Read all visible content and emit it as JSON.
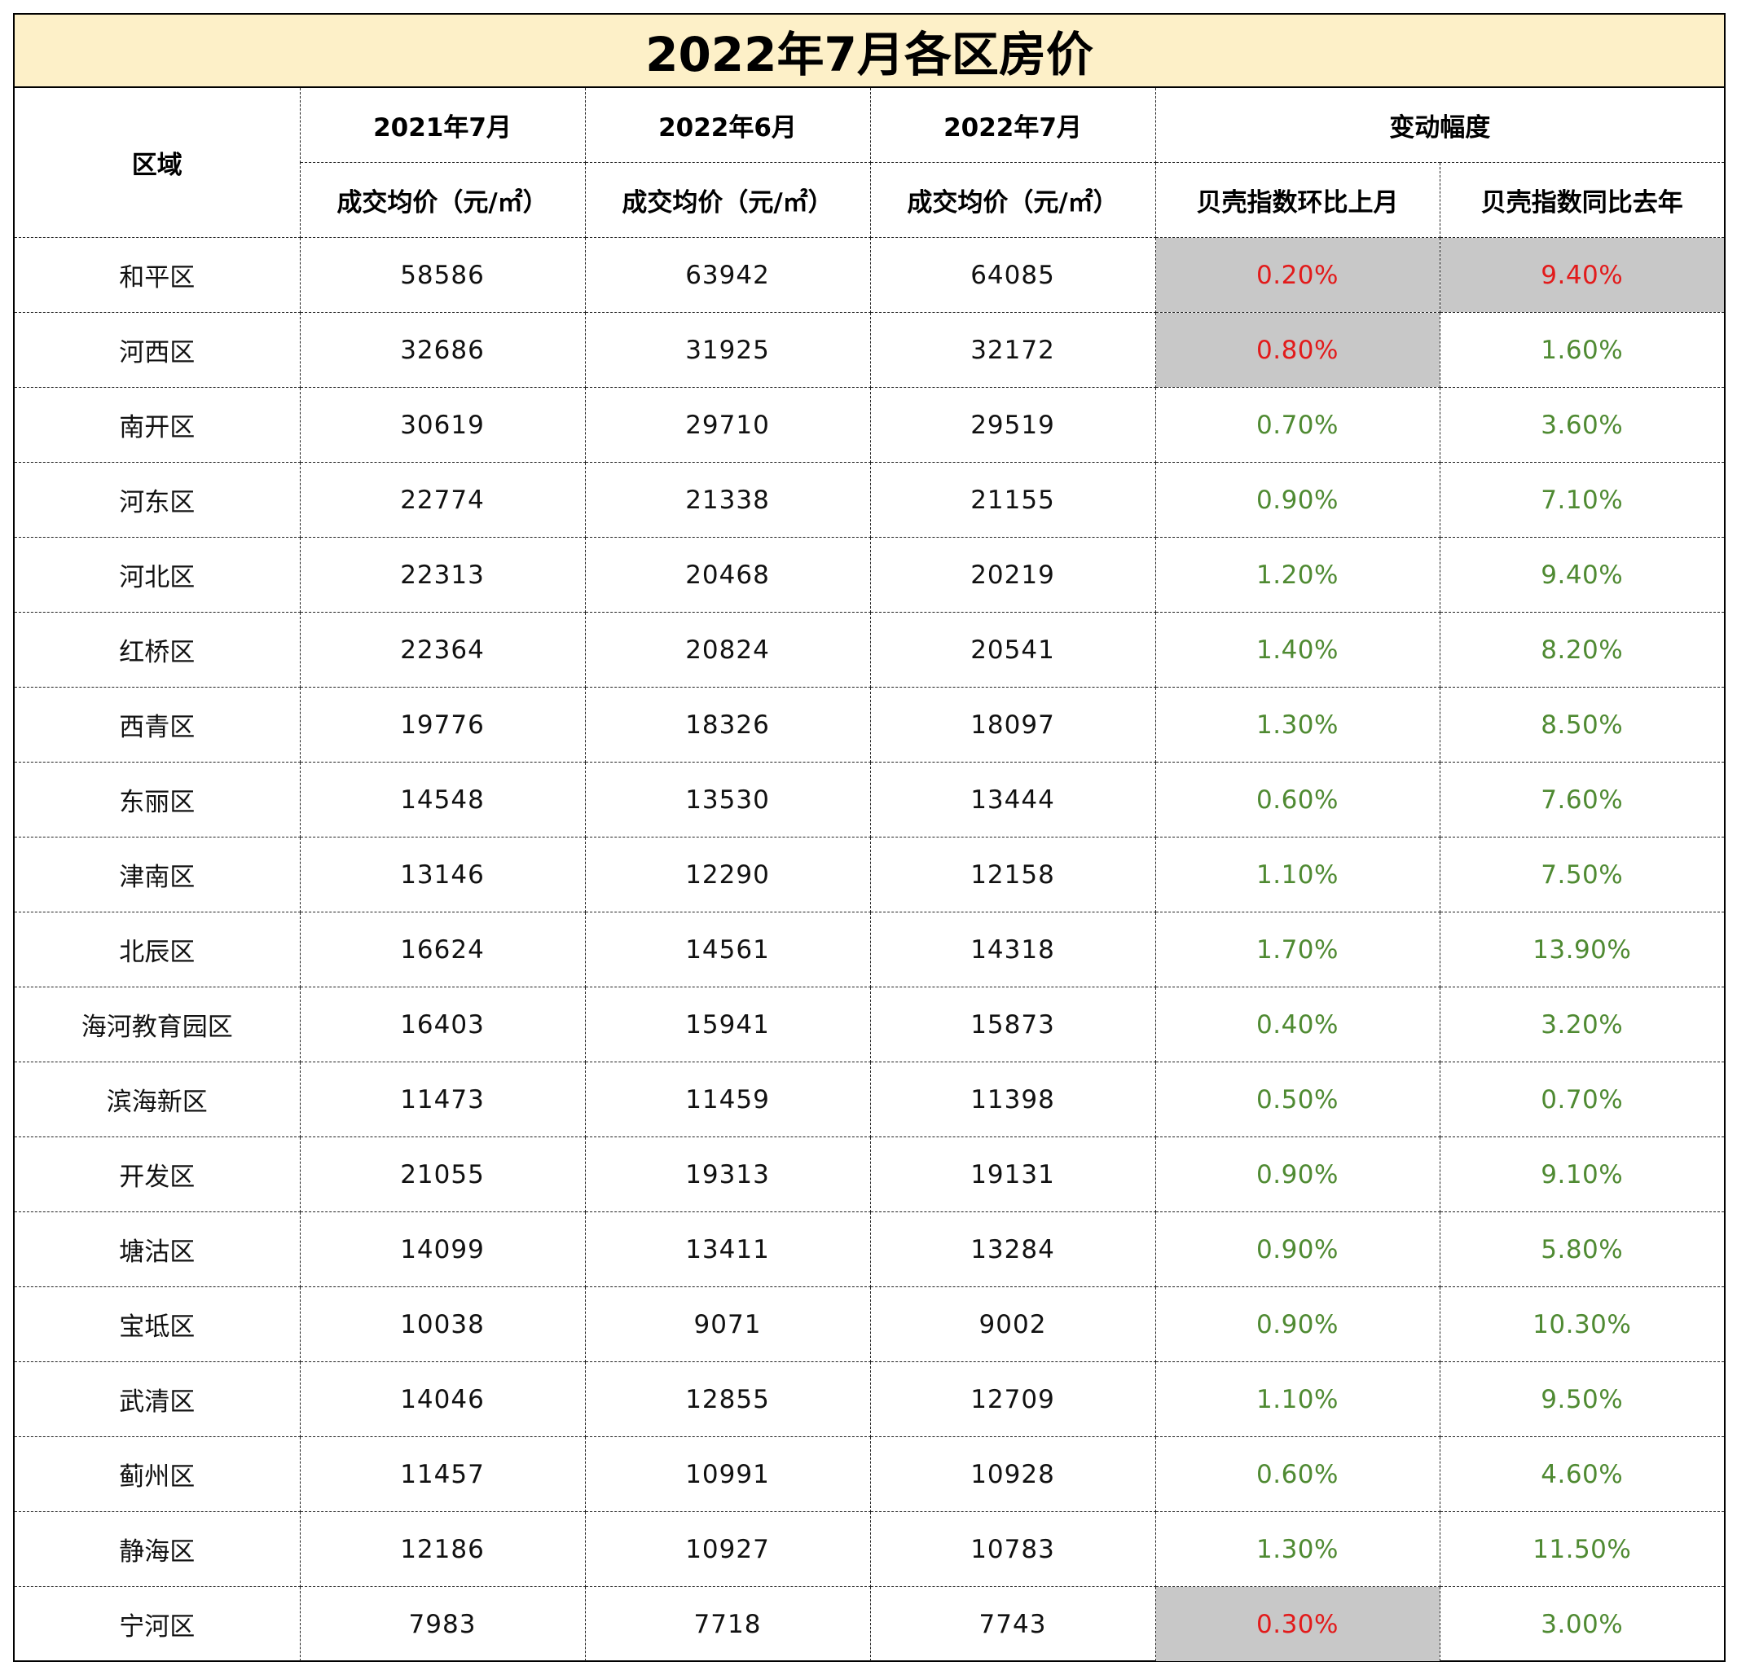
{
  "title": "2022年7月各区房价",
  "header": {
    "region": "区域",
    "p2021_07": "2021年7月",
    "p2022_06": "2022年6月",
    "p2022_07": "2022年7月",
    "change": "变动幅度",
    "avg_price_1": "成交均价（元/㎡）",
    "avg_price_2": "成交均价（元/㎡）",
    "avg_price_3": "成交均价（元/㎡）",
    "mom": "贝壳指数环比上月",
    "yoy": "贝壳指数同比去年"
  },
  "rows": [
    {
      "region": "和平区",
      "p2021_07": "58586",
      "p2022_06": "63942",
      "p2022_07": "64085",
      "mom": "0.20%",
      "yoy": "9.40%",
      "mom_color": "#e21b1b",
      "yoy_color": "#e21b1b",
      "mom_shaded": true,
      "yoy_shaded": true
    },
    {
      "region": "河西区",
      "p2021_07": "32686",
      "p2022_06": "31925",
      "p2022_07": "32172",
      "mom": "0.80%",
      "yoy": "1.60%",
      "mom_color": "#e21b1b",
      "yoy_color": "#4f8a32",
      "mom_shaded": true,
      "yoy_shaded": false
    },
    {
      "region": "南开区",
      "p2021_07": "30619",
      "p2022_06": "29710",
      "p2022_07": "29519",
      "mom": "0.70%",
      "yoy": "3.60%",
      "mom_color": "#4f8a32",
      "yoy_color": "#4f8a32",
      "mom_shaded": false,
      "yoy_shaded": false
    },
    {
      "region": "河东区",
      "p2021_07": "22774",
      "p2022_06": "21338",
      "p2022_07": "21155",
      "mom": "0.90%",
      "yoy": "7.10%",
      "mom_color": "#4f8a32",
      "yoy_color": "#4f8a32",
      "mom_shaded": false,
      "yoy_shaded": false
    },
    {
      "region": "河北区",
      "p2021_07": "22313",
      "p2022_06": "20468",
      "p2022_07": "20219",
      "mom": "1.20%",
      "yoy": "9.40%",
      "mom_color": "#4f8a32",
      "yoy_color": "#4f8a32",
      "mom_shaded": false,
      "yoy_shaded": false
    },
    {
      "region": "红桥区",
      "p2021_07": "22364",
      "p2022_06": "20824",
      "p2022_07": "20541",
      "mom": "1.40%",
      "yoy": "8.20%",
      "mom_color": "#4f8a32",
      "yoy_color": "#4f8a32",
      "mom_shaded": false,
      "yoy_shaded": false
    },
    {
      "region": "西青区",
      "p2021_07": "19776",
      "p2022_06": "18326",
      "p2022_07": "18097",
      "mom": "1.30%",
      "yoy": "8.50%",
      "mom_color": "#4f8a32",
      "yoy_color": "#4f8a32",
      "mom_shaded": false,
      "yoy_shaded": false
    },
    {
      "region": "东丽区",
      "p2021_07": "14548",
      "p2022_06": "13530",
      "p2022_07": "13444",
      "mom": "0.60%",
      "yoy": "7.60%",
      "mom_color": "#4f8a32",
      "yoy_color": "#4f8a32",
      "mom_shaded": false,
      "yoy_shaded": false
    },
    {
      "region": "津南区",
      "p2021_07": "13146",
      "p2022_06": "12290",
      "p2022_07": "12158",
      "mom": "1.10%",
      "yoy": "7.50%",
      "mom_color": "#4f8a32",
      "yoy_color": "#4f8a32",
      "mom_shaded": false,
      "yoy_shaded": false
    },
    {
      "region": "北辰区",
      "p2021_07": "16624",
      "p2022_06": "14561",
      "p2022_07": "14318",
      "mom": "1.70%",
      "yoy": "13.90%",
      "mom_color": "#4f8a32",
      "yoy_color": "#4f8a32",
      "mom_shaded": false,
      "yoy_shaded": false
    },
    {
      "region": "海河教育园区",
      "p2021_07": "16403",
      "p2022_06": "15941",
      "p2022_07": "15873",
      "mom": "0.40%",
      "yoy": "3.20%",
      "mom_color": "#4f8a32",
      "yoy_color": "#4f8a32",
      "mom_shaded": false,
      "yoy_shaded": false
    },
    {
      "region": "滨海新区",
      "p2021_07": "11473",
      "p2022_06": "11459",
      "p2022_07": "11398",
      "mom": "0.50%",
      "yoy": "0.70%",
      "mom_color": "#4f8a32",
      "yoy_color": "#4f8a32",
      "mom_shaded": false,
      "yoy_shaded": false
    },
    {
      "region": "开发区",
      "p2021_07": "21055",
      "p2022_06": "19313",
      "p2022_07": "19131",
      "mom": "0.90%",
      "yoy": "9.10%",
      "mom_color": "#4f8a32",
      "yoy_color": "#4f8a32",
      "mom_shaded": false,
      "yoy_shaded": false
    },
    {
      "region": "塘沽区",
      "p2021_07": "14099",
      "p2022_06": "13411",
      "p2022_07": "13284",
      "mom": "0.90%",
      "yoy": "5.80%",
      "mom_color": "#4f8a32",
      "yoy_color": "#4f8a32",
      "mom_shaded": false,
      "yoy_shaded": false
    },
    {
      "region": "宝坻区",
      "p2021_07": "10038",
      "p2022_06": "9071",
      "p2022_07": "9002",
      "mom": "0.90%",
      "yoy": "10.30%",
      "mom_color": "#4f8a32",
      "yoy_color": "#4f8a32",
      "mom_shaded": false,
      "yoy_shaded": false
    },
    {
      "region": "武清区",
      "p2021_07": "14046",
      "p2022_06": "12855",
      "p2022_07": "12709",
      "mom": "1.10%",
      "yoy": "9.50%",
      "mom_color": "#4f8a32",
      "yoy_color": "#4f8a32",
      "mom_shaded": false,
      "yoy_shaded": false
    },
    {
      "region": "蓟州区",
      "p2021_07": "11457",
      "p2022_06": "10991",
      "p2022_07": "10928",
      "mom": "0.60%",
      "yoy": "4.60%",
      "mom_color": "#4f8a32",
      "yoy_color": "#4f8a32",
      "mom_shaded": false,
      "yoy_shaded": false
    },
    {
      "region": "静海区",
      "p2021_07": "12186",
      "p2022_06": "10927",
      "p2022_07": "10783",
      "mom": "1.30%",
      "yoy": "11.50%",
      "mom_color": "#4f8a32",
      "yoy_color": "#4f8a32",
      "mom_shaded": false,
      "yoy_shaded": false
    },
    {
      "region": "宁河区",
      "p2021_07": "7983",
      "p2022_06": "7718",
      "p2022_07": "7743",
      "mom": "0.30%",
      "yoy": "3.00%",
      "mom_color": "#e21b1b",
      "yoy_color": "#4f8a32",
      "mom_shaded": true,
      "yoy_shaded": false
    }
  ]
}
